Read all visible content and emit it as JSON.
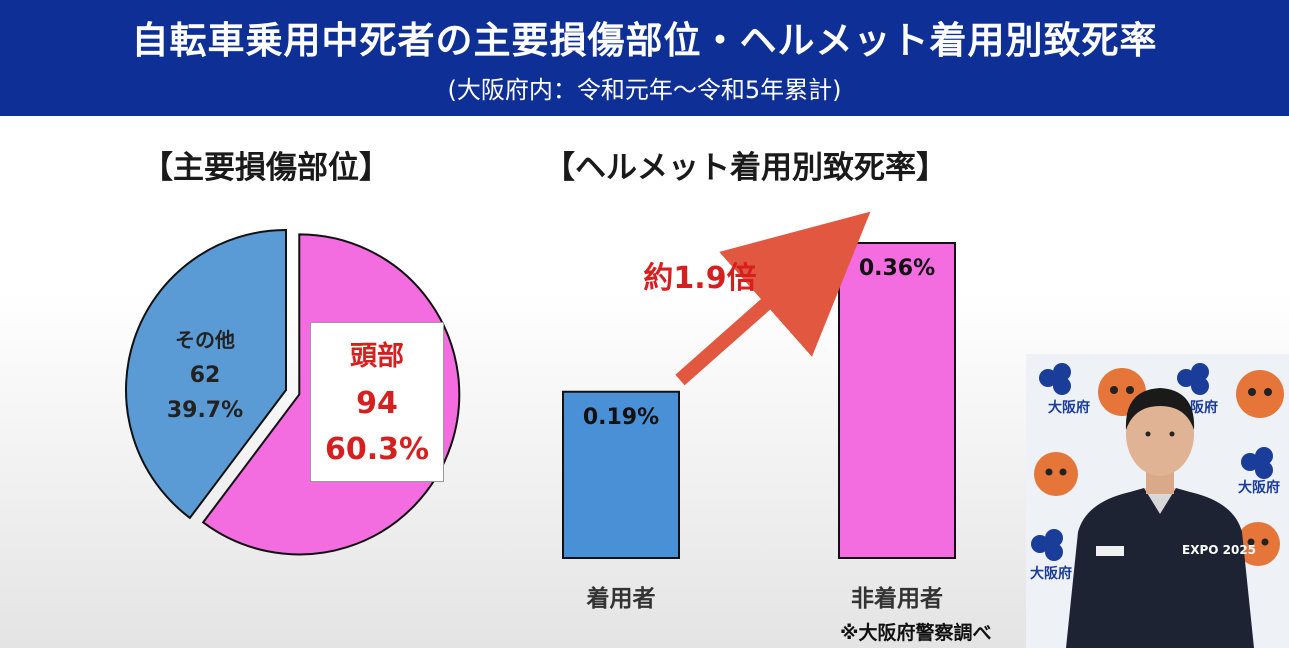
{
  "header": {
    "title": "自転車乗用中死者の主要損傷部位・ヘルメット着用別致死率",
    "subtitle": "(大阪府内：令和元年〜令和5年累計)"
  },
  "pie_section_title": "【主要損傷部位】",
  "bar_section_title": "【ヘルメット着用別致死率】",
  "footnote": "※大阪府警察調べ",
  "video_overlay": {
    "logo_text": "大阪府",
    "badge_text": "EXPO 2025"
  },
  "colors": {
    "header_bg": "#0e2f95",
    "pie_other": "#5b9bd5",
    "pie_head": "#f36ce0",
    "bar_wearing": "#4a90d6",
    "bar_not_wearing": "#f36ce0",
    "arrow": "#e2573f",
    "highlight_text": "#d62020"
  },
  "chart_data": [
    {
      "type": "pie",
      "title": "【主要損傷部位】",
      "slices": [
        {
          "label": "頭部",
          "value": 94,
          "percent_label": "60.3%",
          "color": "#f36ce0"
        },
        {
          "label": "その他",
          "value": 62,
          "percent_label": "39.7%",
          "color": "#5b9bd5"
        }
      ],
      "exploded": "頭部"
    },
    {
      "type": "bar",
      "title": "【ヘルメット着用別致死率】",
      "categories": [
        "着用者",
        "非着用者"
      ],
      "values": [
        0.19,
        0.36
      ],
      "value_labels": [
        "0.19%",
        "0.36%"
      ],
      "colors": [
        "#4a90d6",
        "#f36ce0"
      ],
      "ylim": [
        0,
        0.36
      ],
      "annotation": "約1.9倍"
    }
  ]
}
